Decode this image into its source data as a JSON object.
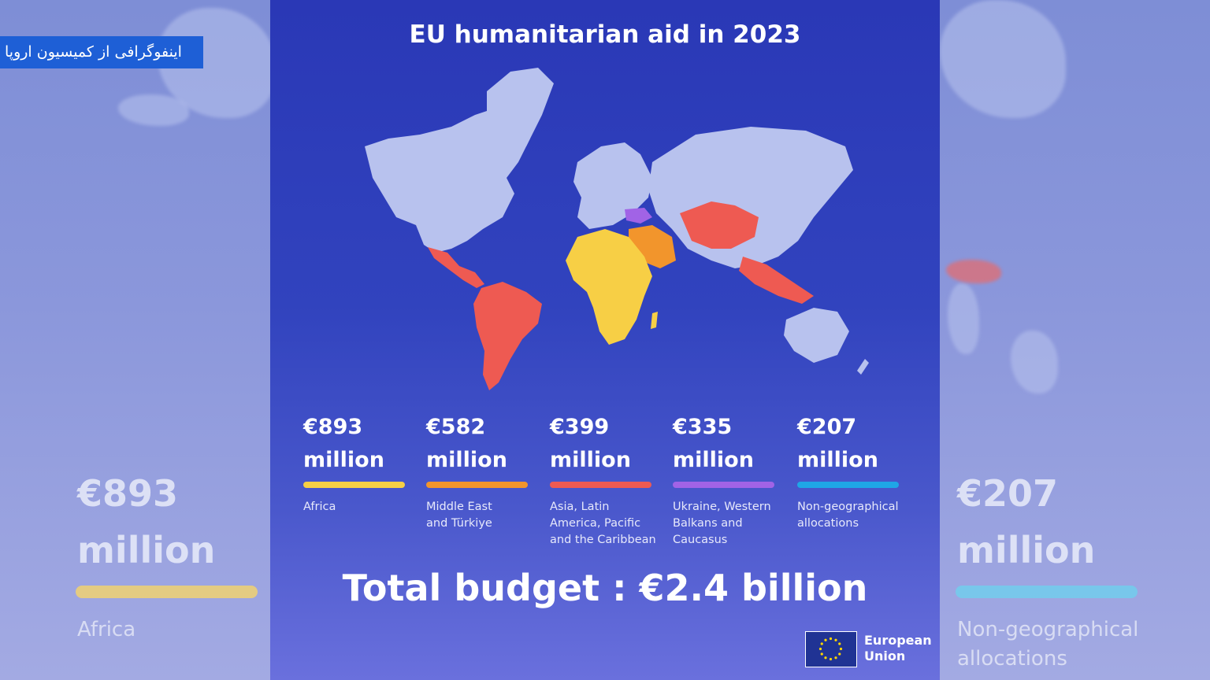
{
  "caption": "اینفوگرافی از کمیسیون اروپا",
  "title": "EU humanitarian aid in 2023",
  "categories": [
    {
      "amount": "€893",
      "unit": "million",
      "label": "Africa",
      "color": "#f7cf45"
    },
    {
      "amount": "€582",
      "unit": "million",
      "label": "Middle East and Türkiye",
      "color": "#f2952c"
    },
    {
      "amount": "€399",
      "unit": "million",
      "label": "Asia, Latin America, Pacific and the Caribbean",
      "color": "#ee5a52"
    },
    {
      "amount": "€335",
      "unit": "million",
      "label": "Ukraine, Western Balkans and Caucasus",
      "color": "#a163e6"
    },
    {
      "amount": "€207",
      "unit": "million",
      "label": "Non-geographical allocations",
      "color": "#1fa6e6"
    }
  ],
  "total": "Total budget : €2.4 billion",
  "logo": {
    "name": "European Union",
    "icon": "eu-flag-icon"
  },
  "colors": {
    "land": "#b8c2ee",
    "africa": "#f7cf45",
    "middle_east": "#f2952c",
    "asia_latam": "#ee5a52",
    "europe_east": "#a163e6"
  }
}
